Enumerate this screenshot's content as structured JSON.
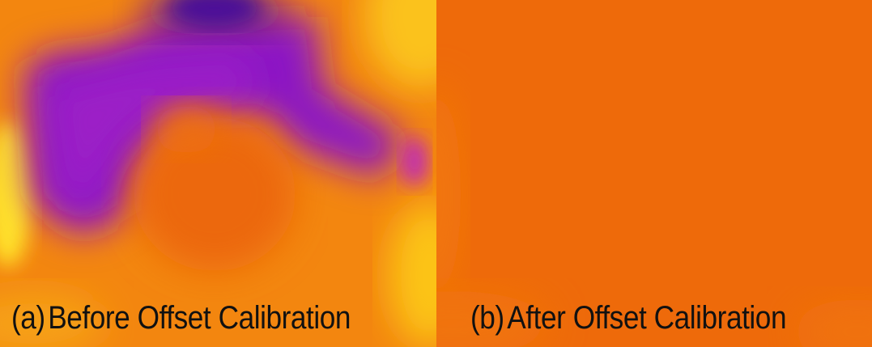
{
  "figure": {
    "panels": [
      {
        "tag": "(a)",
        "caption": "Before Offset Calibration",
        "colormap": [
          "#2a0a78",
          "#8a10c0",
          "#b43cc8",
          "#ec6410",
          "#f38a10",
          "#fcc814"
        ]
      },
      {
        "tag": "(b)",
        "caption": "After Offset Calibration",
        "colormap": [
          "#ee6a0a",
          "#f07a10",
          "#f5a412"
        ]
      }
    ]
  }
}
